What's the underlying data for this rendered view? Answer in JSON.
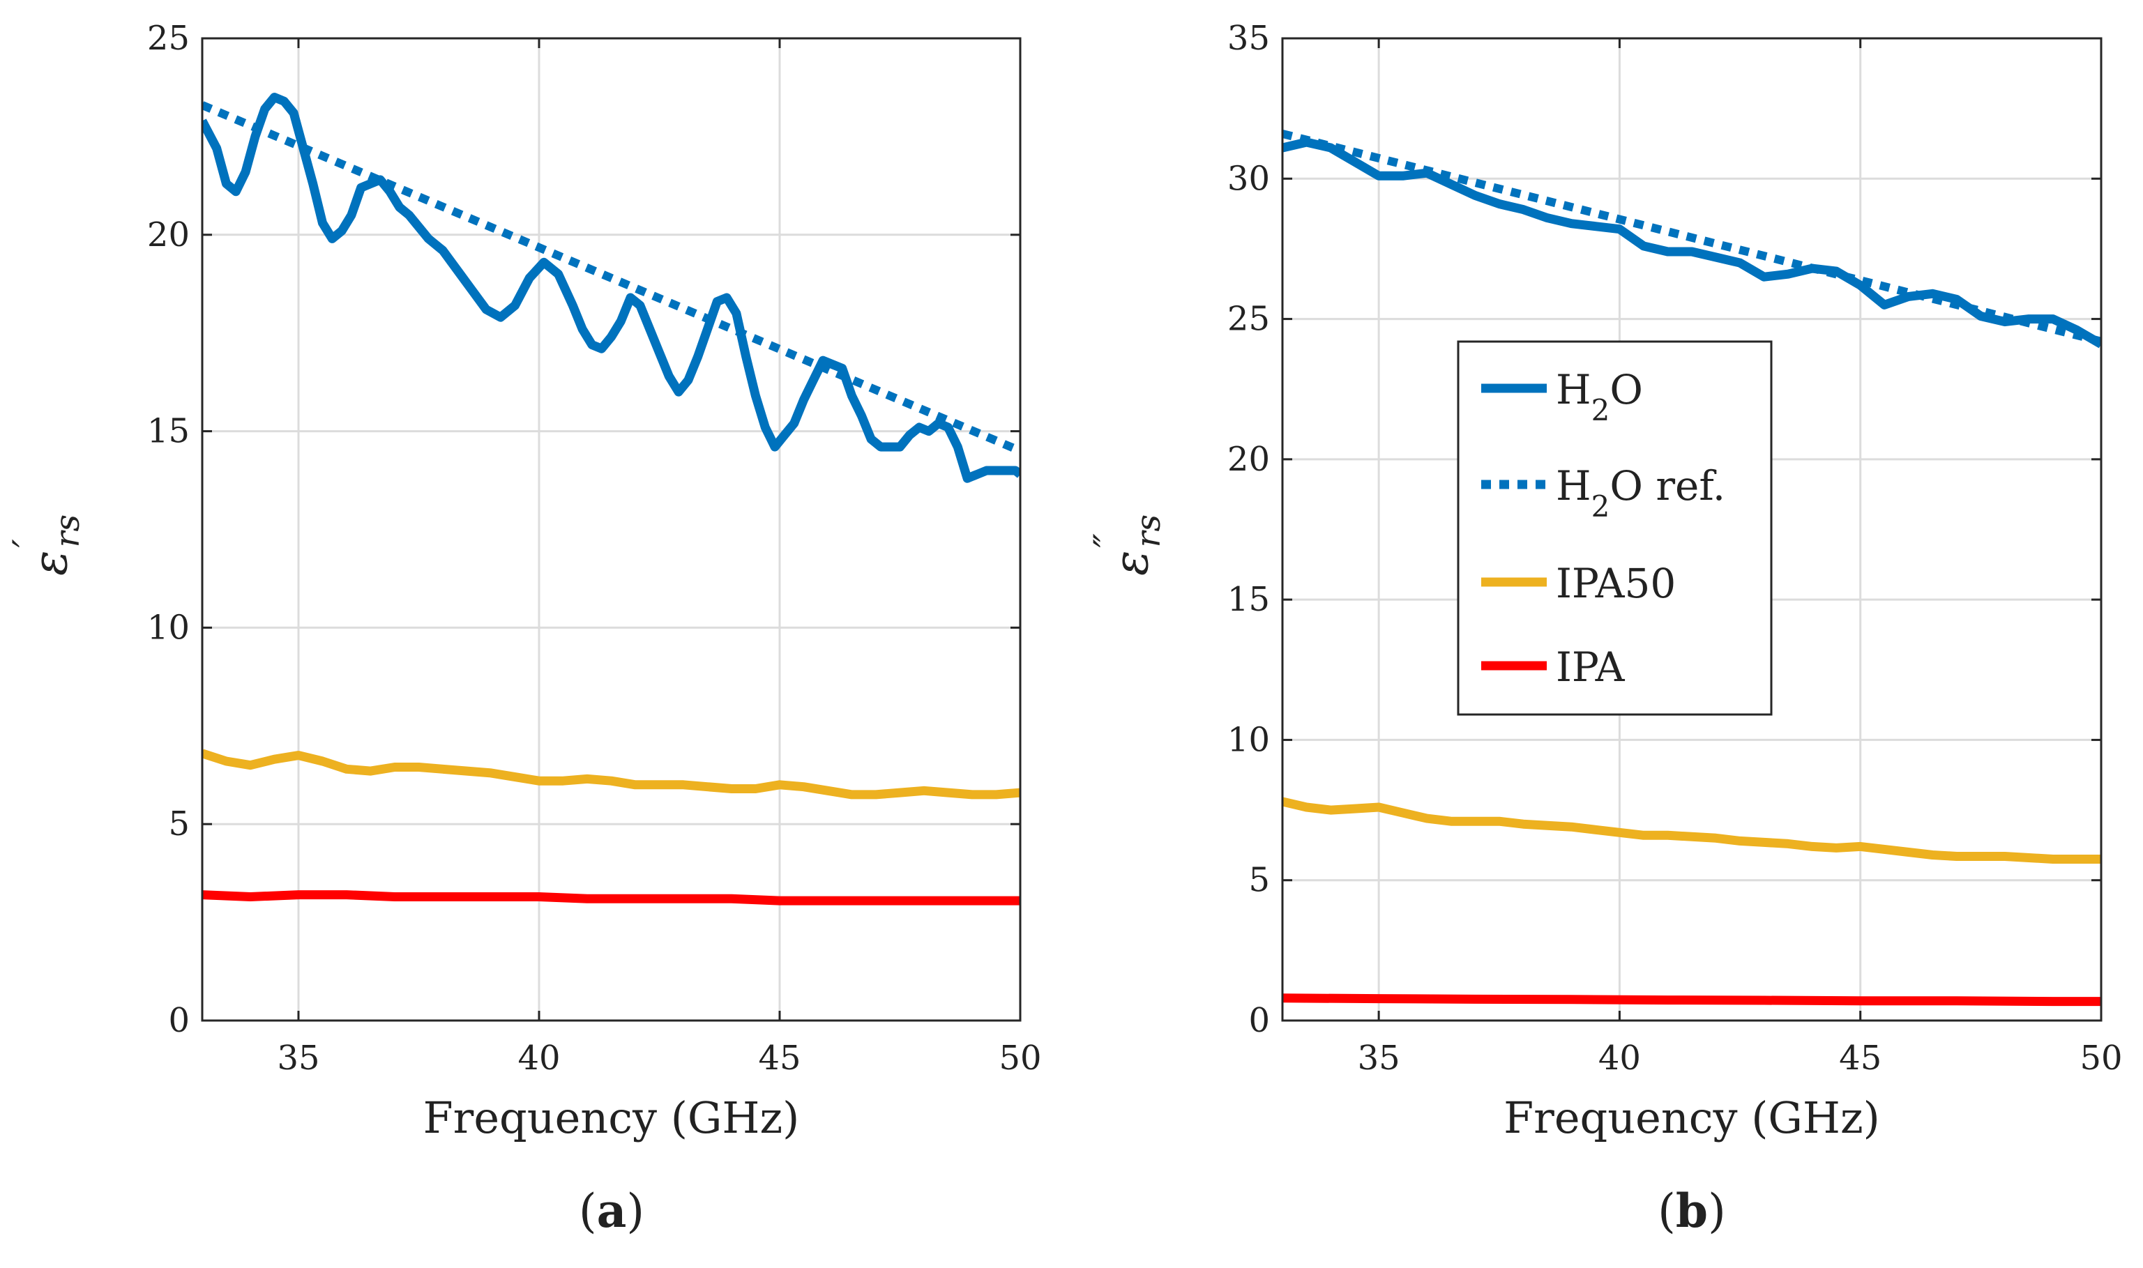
{
  "chart_data": [
    {
      "id": "a",
      "type": "line",
      "panel_label": "(a)",
      "panel_label_letter": "a",
      "xlabel": "Frequency (GHz)",
      "ylabel_symbol": "ε",
      "ylabel_prime": "′",
      "ylabel_subscript": "rs",
      "xlim": [
        33,
        50
      ],
      "ylim": [
        0,
        25
      ],
      "xticks": [
        35,
        40,
        45,
        50
      ],
      "yticks": [
        0,
        5,
        10,
        15,
        20,
        25
      ],
      "grid": true,
      "series": [
        {
          "name": "H2O",
          "style": "solid",
          "color": "#0072BD",
          "x": [
            33,
            33.3,
            33.5,
            33.7,
            33.9,
            34.1,
            34.3,
            34.5,
            34.7,
            34.9,
            35.1,
            35.3,
            35.5,
            35.7,
            35.9,
            36.1,
            36.3,
            36.5,
            36.7,
            36.9,
            37.1,
            37.3,
            37.5,
            37.7,
            38,
            38.3,
            38.6,
            38.9,
            39.2,
            39.5,
            39.8,
            40.1,
            40.4,
            40.7,
            40.9,
            41.1,
            41.3,
            41.5,
            41.7,
            41.9,
            42.1,
            42.3,
            42.5,
            42.7,
            42.9,
            43.1,
            43.3,
            43.5,
            43.7,
            43.9,
            44.1,
            44.3,
            44.5,
            44.7,
            44.9,
            45.1,
            45.3,
            45.5,
            45.7,
            45.9,
            46.1,
            46.3,
            46.5,
            46.7,
            46.9,
            47.1,
            47.3,
            47.5,
            47.7,
            47.9,
            48.1,
            48.3,
            48.5,
            48.7,
            48.9,
            49.1,
            49.3,
            49.5,
            49.7,
            49.9,
            50
          ],
          "y": [
            22.9,
            22.2,
            21.3,
            21.1,
            21.6,
            22.5,
            23.2,
            23.5,
            23.4,
            23.1,
            22.2,
            21.3,
            20.3,
            19.9,
            20.1,
            20.5,
            21.2,
            21.3,
            21.4,
            21.1,
            20.7,
            20.5,
            20.2,
            19.9,
            19.6,
            19.1,
            18.6,
            18.1,
            17.9,
            18.2,
            18.9,
            19.3,
            19.0,
            18.2,
            17.6,
            17.2,
            17.1,
            17.4,
            17.8,
            18.4,
            18.2,
            17.6,
            17.0,
            16.4,
            16.0,
            16.3,
            16.9,
            17.6,
            18.3,
            18.4,
            18.0,
            16.9,
            15.9,
            15.1,
            14.6,
            14.9,
            15.2,
            15.8,
            16.3,
            16.8,
            16.7,
            16.6,
            15.9,
            15.4,
            14.8,
            14.6,
            14.6,
            14.6,
            14.9,
            15.1,
            15.0,
            15.2,
            15.1,
            14.6,
            13.8,
            13.9,
            14.0,
            14.0,
            14.0,
            14.0,
            13.9
          ]
        },
        {
          "name": "H2O ref.",
          "style": "dotted",
          "color": "#0072BD",
          "x": [
            33,
            50
          ],
          "y": [
            23.3,
            14.5
          ]
        },
        {
          "name": "IPA50",
          "style": "solid",
          "color": "#EDB120",
          "x": [
            33,
            33.5,
            34,
            34.5,
            35,
            35.5,
            36,
            36.5,
            37,
            37.5,
            38,
            38.5,
            39,
            39.5,
            40,
            40.5,
            41,
            41.5,
            42,
            42.5,
            43,
            43.5,
            44,
            44.5,
            45,
            45.5,
            46,
            46.5,
            47,
            47.5,
            48,
            48.5,
            49,
            49.5,
            50
          ],
          "y": [
            6.8,
            6.6,
            6.5,
            6.65,
            6.75,
            6.6,
            6.4,
            6.35,
            6.45,
            6.45,
            6.4,
            6.35,
            6.3,
            6.2,
            6.1,
            6.1,
            6.15,
            6.1,
            6.0,
            6.0,
            6.0,
            5.95,
            5.9,
            5.9,
            6.0,
            5.95,
            5.85,
            5.75,
            5.75,
            5.8,
            5.85,
            5.8,
            5.75,
            5.75,
            5.8
          ]
        },
        {
          "name": "IPA",
          "style": "solid",
          "color": "#FF0000",
          "x": [
            33,
            34,
            35,
            36,
            37,
            38,
            39,
            40,
            41,
            42,
            43,
            44,
            45,
            46,
            47,
            48,
            49,
            50
          ],
          "y": [
            3.2,
            3.15,
            3.2,
            3.2,
            3.15,
            3.15,
            3.15,
            3.15,
            3.1,
            3.1,
            3.1,
            3.1,
            3.05,
            3.05,
            3.05,
            3.05,
            3.05,
            3.05
          ]
        }
      ]
    },
    {
      "id": "b",
      "type": "line",
      "panel_label": "(b)",
      "panel_label_letter": "b",
      "xlabel": "Frequency (GHz)",
      "ylabel_symbol": "ε",
      "ylabel_prime": "″",
      "ylabel_subscript": "rs",
      "xlim": [
        33,
        50
      ],
      "ylim": [
        0,
        35
      ],
      "xticks": [
        35,
        40,
        45,
        50
      ],
      "yticks": [
        0,
        5,
        10,
        15,
        20,
        25,
        30,
        35
      ],
      "grid": true,
      "legend_position": "center",
      "series": [
        {
          "name": "H2O",
          "style": "solid",
          "color": "#0072BD",
          "x": [
            33,
            33.5,
            34,
            34.5,
            35,
            35.5,
            36,
            36.5,
            37,
            37.5,
            38,
            38.5,
            39,
            39.5,
            40,
            40.5,
            41,
            41.5,
            42,
            42.5,
            43,
            43.5,
            44,
            44.5,
            45,
            45.5,
            46,
            46.5,
            47,
            47.5,
            48,
            48.5,
            49,
            49.5,
            50
          ],
          "y": [
            31.1,
            31.3,
            31.1,
            30.6,
            30.1,
            30.1,
            30.2,
            29.8,
            29.4,
            29.1,
            28.9,
            28.6,
            28.4,
            28.3,
            28.2,
            27.6,
            27.4,
            27.4,
            27.2,
            27.0,
            26.5,
            26.6,
            26.8,
            26.7,
            26.2,
            25.5,
            25.8,
            25.9,
            25.7,
            25.1,
            24.9,
            25.0,
            25.0,
            24.6,
            24.1
          ]
        },
        {
          "name": "H2O ref.",
          "style": "dotted",
          "color": "#0072BD",
          "x": [
            33,
            50
          ],
          "y": [
            31.6,
            24.2
          ]
        },
        {
          "name": "IPA50",
          "style": "solid",
          "color": "#EDB120",
          "x": [
            33,
            33.5,
            34,
            34.5,
            35,
            35.5,
            36,
            36.5,
            37,
            37.5,
            38,
            38.5,
            39,
            39.5,
            40,
            40.5,
            41,
            41.5,
            42,
            42.5,
            43,
            43.5,
            44,
            44.5,
            45,
            45.5,
            46,
            46.5,
            47,
            47.5,
            48,
            48.5,
            49,
            49.5,
            50
          ],
          "y": [
            7.8,
            7.6,
            7.5,
            7.55,
            7.6,
            7.4,
            7.2,
            7.1,
            7.1,
            7.1,
            7.0,
            6.95,
            6.9,
            6.8,
            6.7,
            6.6,
            6.6,
            6.55,
            6.5,
            6.4,
            6.35,
            6.3,
            6.2,
            6.15,
            6.2,
            6.1,
            6.0,
            5.9,
            5.85,
            5.85,
            5.85,
            5.8,
            5.75,
            5.75,
            5.75
          ]
        },
        {
          "name": "IPA",
          "style": "solid",
          "color": "#FF0000",
          "x": [
            33,
            35,
            37,
            39,
            41,
            43,
            45,
            47,
            49,
            50
          ],
          "y": [
            0.8,
            0.78,
            0.76,
            0.75,
            0.73,
            0.72,
            0.7,
            0.7,
            0.68,
            0.68
          ]
        }
      ]
    }
  ],
  "legend": {
    "entries": [
      {
        "base": "H",
        "sub": "2",
        "rest": "O"
      },
      {
        "base": "H",
        "sub": "2",
        "rest": "O ref."
      },
      {
        "base": "IPA50",
        "sub": "",
        "rest": ""
      },
      {
        "base": "IPA",
        "sub": "",
        "rest": ""
      }
    ]
  }
}
